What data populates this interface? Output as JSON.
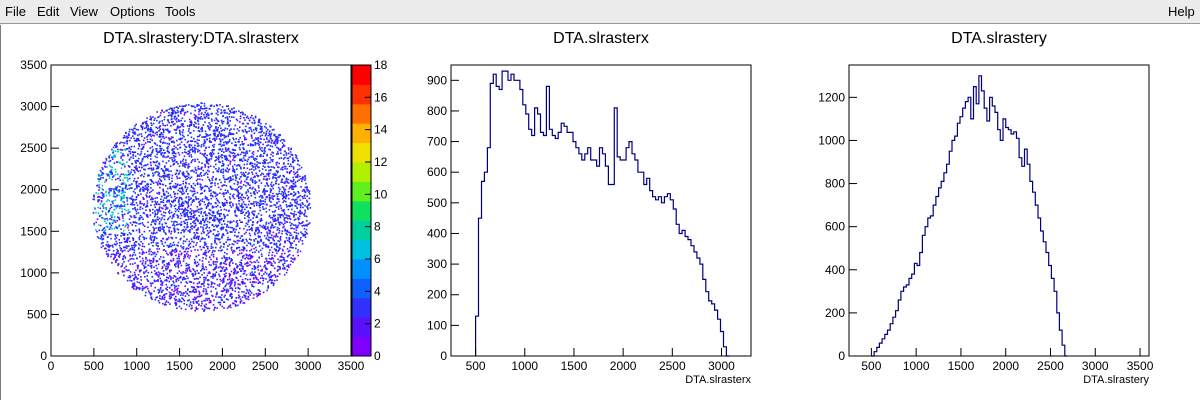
{
  "menu": {
    "file": "File",
    "edit": "Edit",
    "view": "View",
    "options": "Options",
    "tools": "Tools",
    "help": "Help"
  },
  "chart_data": [
    {
      "type": "heatmap",
      "title": "DTA.slrastery:DTA.slrasterx",
      "xlabel": "",
      "ylabel": "",
      "xlim": [
        0,
        3500
      ],
      "ylim": [
        0,
        3500
      ],
      "x_ticks": [
        "0",
        "500",
        "1000",
        "1500",
        "2000",
        "2500",
        "3000",
        "3500"
      ],
      "y_ticks": [
        "0",
        "500",
        "1000",
        "1500",
        "2000",
        "2500",
        "3000",
        "3500"
      ],
      "colorbar": {
        "range": [
          0,
          18
        ],
        "ticks": [
          "0",
          "2",
          "4",
          "6",
          "8",
          "10",
          "12",
          "14",
          "16",
          "18"
        ]
      },
      "distribution": {
        "center_x": 1750,
        "center_y": 1800,
        "radius_x": 1300,
        "radius_y": 1280
      },
      "colors": {
        "low": "#7f00ff",
        "mid": "#1e2cff",
        "high": "#00c8c8"
      }
    },
    {
      "type": "histogram",
      "title": "DTA.slrasterx",
      "xlabel": "DTA.slrasterx",
      "ylabel": "",
      "xlim": [
        250,
        3300
      ],
      "ylim": [
        0,
        950
      ],
      "x_ticks": [
        "500",
        "1000",
        "1500",
        "2000",
        "2500",
        "3000"
      ],
      "y_ticks": [
        "0",
        "100",
        "200",
        "300",
        "400",
        "500",
        "600",
        "700",
        "800",
        "900"
      ],
      "bin_start": 500,
      "bin_width": 30,
      "values": [
        130,
        450,
        570,
        600,
        680,
        890,
        920,
        880,
        870,
        930,
        930,
        900,
        920,
        900,
        900,
        870,
        820,
        790,
        740,
        720,
        810,
        790,
        730,
        720,
        880,
        740,
        720,
        710,
        730,
        760,
        750,
        730,
        730,
        700,
        680,
        660,
        640,
        660,
        680,
        640,
        640,
        620,
        680,
        660,
        620,
        560,
        560,
        810,
        650,
        640,
        640,
        680,
        700,
        660,
        640,
        600,
        600,
        560,
        580,
        540,
        520,
        510,
        520,
        500,
        520,
        530,
        510,
        480,
        430,
        400,
        410,
        390,
        380,
        360,
        340,
        320,
        300,
        250,
        210,
        180,
        170,
        150,
        120,
        80,
        30,
        0
      ],
      "color": "#00007f"
    },
    {
      "type": "histogram",
      "title": "DTA.slrastery",
      "xlabel": "DTA.slrastery",
      "ylabel": "",
      "xlim": [
        250,
        3600
      ],
      "ylim": [
        0,
        1350
      ],
      "x_ticks": [
        "500",
        "1000",
        "1500",
        "2000",
        "2500",
        "3000",
        "3500"
      ],
      "y_ticks": [
        "0",
        "200",
        "400",
        "600",
        "800",
        "1000",
        "1200"
      ],
      "bin_start": 500,
      "bin_width": 30,
      "values": [
        0,
        20,
        40,
        60,
        80,
        100,
        120,
        150,
        180,
        210,
        260,
        300,
        320,
        330,
        360,
        380,
        430,
        420,
        480,
        560,
        600,
        640,
        650,
        700,
        740,
        780,
        810,
        850,
        890,
        950,
        1000,
        1020,
        1080,
        1110,
        1150,
        1180,
        1200,
        1100,
        1250,
        1170,
        1300,
        1230,
        1150,
        1090,
        1200,
        1160,
        1130,
        1050,
        1000,
        1100,
        1060,
        1050,
        1030,
        1040,
        1010,
        920,
        880,
        960,
        890,
        810,
        760,
        700,
        640,
        580,
        530,
        480,
        420,
        360,
        300,
        200,
        120,
        50,
        0
      ],
      "color": "#00007f"
    }
  ]
}
